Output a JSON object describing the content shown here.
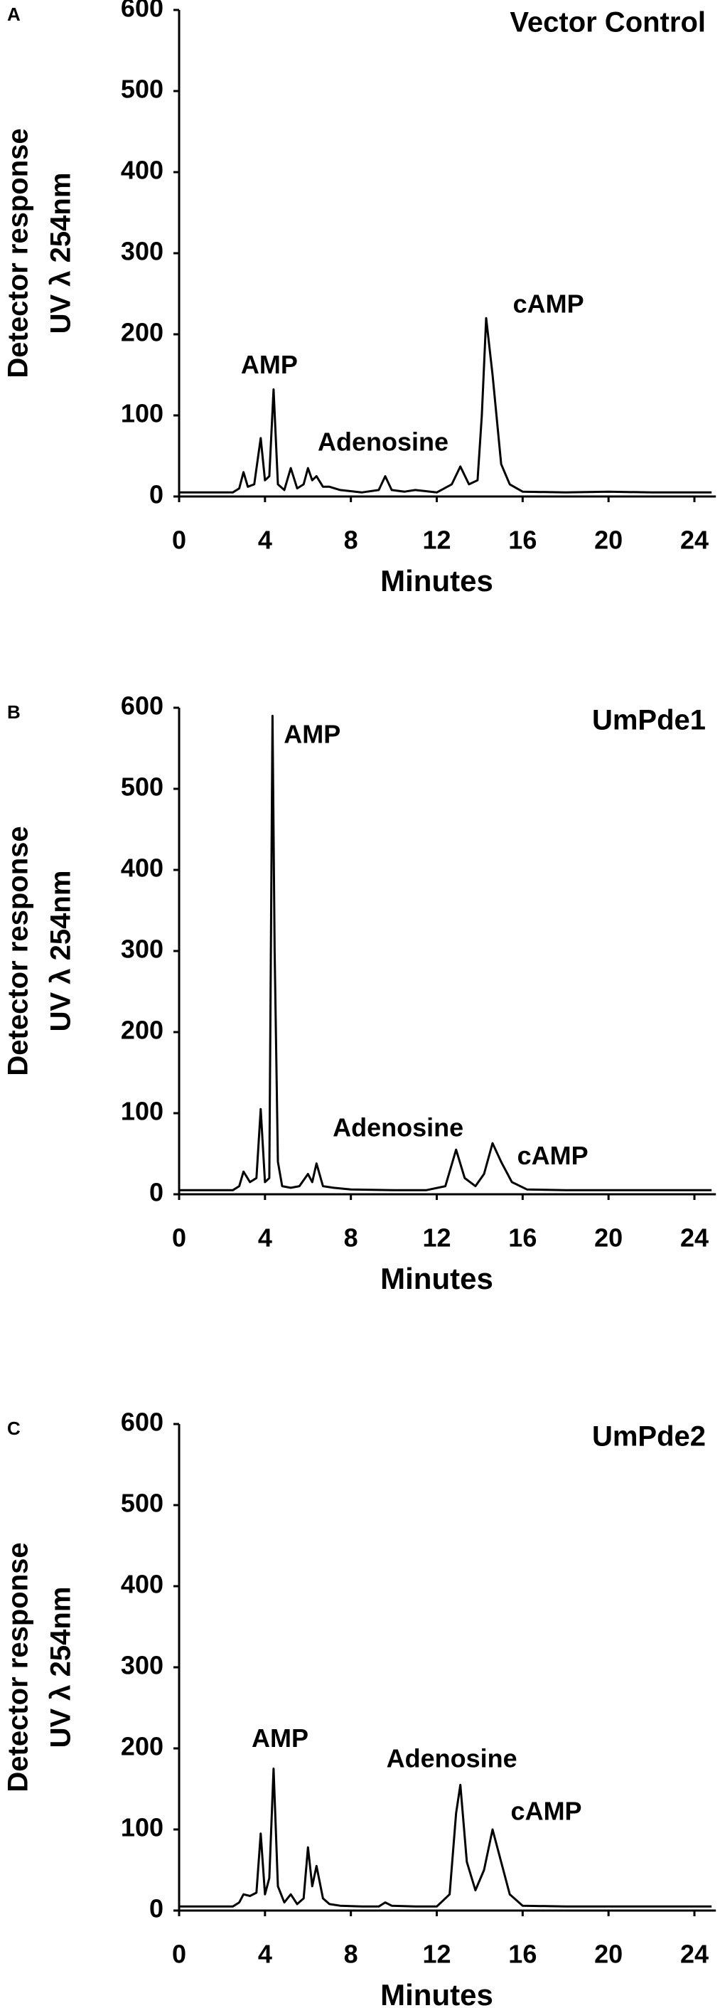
{
  "chart_data": [
    {
      "type": "line",
      "panel": "A",
      "title": "Vector Control",
      "x_label": "Minutes",
      "y_label": [
        "Detector response",
        "UV  λ 254nm"
      ],
      "annotations": [
        "AMP",
        "Adenosine",
        "cAMP"
      ],
      "xlim": [
        0,
        25
      ],
      "xticks": [
        0,
        4,
        8,
        12,
        16,
        20,
        24
      ],
      "ylim": [
        0,
        600
      ],
      "yticks": [
        0,
        100,
        200,
        300,
        400,
        500,
        600
      ],
      "series": [
        {
          "color": "#000000",
          "x": [
            0,
            2.5,
            2.8,
            3.0,
            3.2,
            3.5,
            3.8,
            4.0,
            4.2,
            4.4,
            4.6,
            4.9,
            5.2,
            5.5,
            5.8,
            6.0,
            6.2,
            6.4,
            6.7,
            7.0,
            7.5,
            8.5,
            9.3,
            9.6,
            9.9,
            10.5,
            11,
            12,
            12.7,
            13.1,
            13.5,
            13.9,
            14.1,
            14.3,
            14.6,
            15.0,
            15.4,
            16,
            18,
            20,
            22,
            24.8
          ],
          "values": [
            5,
            5,
            10,
            30,
            12,
            15,
            72,
            20,
            25,
            132,
            15,
            8,
            35,
            10,
            15,
            35,
            20,
            25,
            12,
            12,
            8,
            5,
            8,
            25,
            8,
            6,
            8,
            5,
            15,
            37,
            15,
            20,
            100,
            220,
            150,
            40,
            15,
            6,
            5,
            6,
            5,
            5
          ]
        }
      ]
    },
    {
      "type": "line",
      "panel": "B",
      "title": "UmPde1",
      "x_label": "Minutes",
      "y_label": [
        "Detector response",
        "UV  λ 254nm"
      ],
      "annotations": [
        "AMP",
        "Adenosine",
        "cAMP"
      ],
      "xlim": [
        0,
        25
      ],
      "xticks": [
        0,
        4,
        8,
        12,
        16,
        20,
        24
      ],
      "ylim": [
        0,
        600
      ],
      "yticks": [
        0,
        100,
        200,
        300,
        400,
        500,
        600
      ],
      "series": [
        {
          "color": "#000000",
          "x": [
            0,
            2.5,
            2.8,
            3.0,
            3.3,
            3.6,
            3.8,
            4.0,
            4.2,
            4.35,
            4.45,
            4.6,
            4.8,
            5.2,
            5.6,
            6.0,
            6.2,
            6.4,
            6.7,
            7.2,
            8,
            10,
            11.5,
            12.4,
            12.9,
            13.3,
            13.8,
            14.2,
            14.6,
            15.0,
            15.5,
            16.2,
            18,
            20,
            22,
            24.8
          ],
          "values": [
            5,
            5,
            10,
            28,
            15,
            20,
            105,
            15,
            20,
            590,
            300,
            40,
            10,
            8,
            10,
            25,
            15,
            38,
            10,
            8,
            6,
            5,
            5,
            10,
            55,
            20,
            10,
            25,
            63,
            40,
            15,
            6,
            5,
            5,
            5,
            5
          ]
        }
      ]
    },
    {
      "type": "line",
      "panel": "C",
      "title": "UmPde2",
      "x_label": "Minutes",
      "y_label": [
        "Detector response",
        "UV  λ 254nm"
      ],
      "annotations": [
        "AMP",
        "Adenosine",
        "cAMP"
      ],
      "xlim": [
        0,
        25
      ],
      "xticks": [
        0,
        4,
        8,
        12,
        16,
        20,
        24
      ],
      "ylim": [
        0,
        600
      ],
      "yticks": [
        0,
        100,
        200,
        300,
        400,
        500,
        600
      ],
      "series": [
        {
          "color": "#000000",
          "x": [
            0,
            2.5,
            2.8,
            3.0,
            3.3,
            3.6,
            3.8,
            4.0,
            4.2,
            4.4,
            4.6,
            4.9,
            5.2,
            5.5,
            5.8,
            6.0,
            6.2,
            6.4,
            6.7,
            7.0,
            7.5,
            8.5,
            9.3,
            9.6,
            9.9,
            11,
            12,
            12.6,
            12.9,
            13.1,
            13.4,
            13.8,
            14.2,
            14.6,
            15.0,
            15.4,
            16,
            18,
            20,
            22,
            24.8
          ],
          "values": [
            5,
            5,
            10,
            20,
            18,
            22,
            95,
            20,
            40,
            175,
            30,
            10,
            20,
            8,
            15,
            78,
            30,
            55,
            15,
            8,
            6,
            5,
            5,
            10,
            6,
            5,
            5,
            20,
            120,
            155,
            60,
            25,
            50,
            100,
            60,
            20,
            6,
            5,
            5,
            5,
            5
          ]
        }
      ]
    }
  ]
}
